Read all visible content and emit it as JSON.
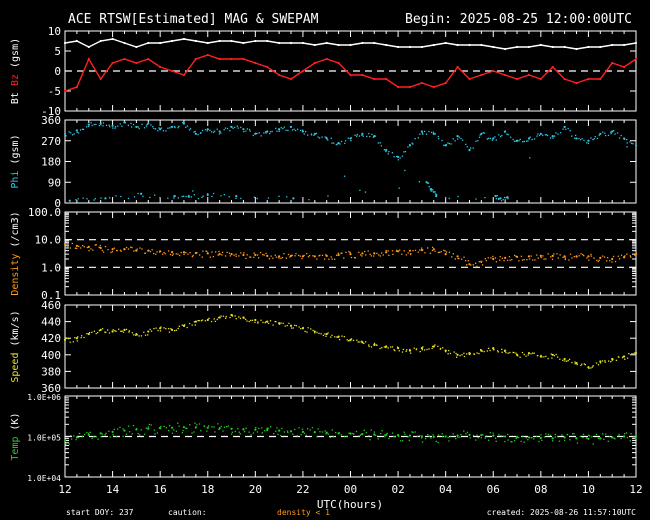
{
  "title": "ACE RTSW[Estimated] MAG & SWEPAM",
  "begin": "Begin: 2025-08-25 12:00:00UTC",
  "xlabel": "UTC(hours)",
  "footer": {
    "start": "start DOY: 237",
    "caution": "caution:",
    "caution_note": "density < 1",
    "created": "created: 2025-08-26 11:57:10UTC"
  },
  "colors": {
    "bt": "#ffffff",
    "bz": "#ff2020",
    "phi": "#30c8e8",
    "density": "#ff9a1a",
    "speed": "#e8e020",
    "temp": "#20d020",
    "axes": "#ffffff",
    "caution": "#ff9a1a"
  },
  "chart_data": [
    {
      "type": "line",
      "panel": "mag",
      "ylabel_parts": [
        "Bt",
        "Bz",
        "(gsm)"
      ],
      "ylim": [
        -10,
        10
      ],
      "yticks": [
        "10",
        "5",
        "0",
        "-5",
        "-10"
      ],
      "ref_lines": [
        0
      ],
      "series": [
        {
          "name": "Bt",
          "x": [
            0,
            0.5,
            1,
            1.5,
            2,
            2.5,
            3,
            3.5,
            4,
            4.5,
            5,
            5.5,
            6,
            6.5,
            7,
            7.5,
            8,
            8.5,
            9,
            9.5,
            10,
            10.5,
            11,
            11.5,
            12,
            12.5,
            13,
            13.5,
            14,
            14.5,
            15,
            15.5,
            16,
            16.5,
            17,
            17.5,
            18,
            18.5,
            19,
            19.5,
            20,
            20.5,
            21,
            21.5,
            22,
            22.5,
            23,
            23.5,
            24
          ],
          "y": [
            7,
            7.5,
            6,
            7.5,
            8,
            7,
            6,
            7,
            7,
            7.5,
            8,
            7.5,
            7,
            7.5,
            7.5,
            7,
            7.5,
            7.5,
            7,
            7,
            7,
            6.5,
            7,
            6.5,
            6.5,
            7,
            7,
            6.5,
            6,
            6,
            6,
            6.5,
            7,
            6.5,
            6.5,
            6.5,
            6,
            5.5,
            6,
            6,
            6.5,
            6,
            6,
            5.5,
            6,
            6,
            6.5,
            6.5,
            7
          ]
        },
        {
          "name": "Bz",
          "x": [
            0,
            0.5,
            1,
            1.5,
            2,
            2.5,
            3,
            3.5,
            4,
            4.5,
            5,
            5.5,
            6,
            6.5,
            7,
            7.5,
            8,
            8.5,
            9,
            9.5,
            10,
            10.5,
            11,
            11.5,
            12,
            12.5,
            13,
            13.5,
            14,
            14.5,
            15,
            15.5,
            16,
            16.5,
            17,
            17.5,
            18,
            18.5,
            19,
            19.5,
            20,
            20.5,
            21,
            21.5,
            22,
            22.5,
            23,
            23.5,
            24
          ],
          "y": [
            -5,
            -4,
            3,
            -2,
            2,
            3,
            2,
            3,
            1,
            0,
            -1,
            3,
            4,
            3,
            3,
            3,
            2,
            1,
            -1,
            -2,
            0,
            2,
            3,
            2,
            -1,
            -1,
            -2,
            -2,
            -4,
            -4,
            -3,
            -4,
            -3,
            1,
            -2,
            -1,
            0,
            -1,
            -2,
            -1,
            -2,
            1,
            -2,
            -3,
            -2,
            -2,
            2,
            1,
            3
          ]
        }
      ]
    },
    {
      "type": "scatter",
      "panel": "phi",
      "ylabel_parts": [
        "Phi",
        "(gsm)"
      ],
      "ylim": [
        0,
        360
      ],
      "yticks": [
        "360",
        "270",
        "180",
        "90",
        "0"
      ],
      "series": [
        {
          "name": "Phi",
          "x": [
            0,
            0.5,
            1,
            1.5,
            2,
            2.5,
            3,
            3.5,
            4,
            4.5,
            5,
            5.5,
            6,
            6.5,
            7,
            7.5,
            8,
            8.5,
            9,
            9.5,
            10,
            10.5,
            11,
            11.5,
            12,
            12.5,
            13,
            13.5,
            14,
            14.5,
            15,
            15.5,
            16,
            16.5,
            17,
            17.5,
            18,
            18.5,
            19,
            19.5,
            20,
            20.5,
            21,
            21.5,
            22,
            22.5,
            23,
            23.5,
            24,
            0.2,
            1.7,
            3.2,
            4.6,
            5.2,
            6.0,
            7.2,
            9.6,
            15.2,
            15.4,
            15.6,
            18.1,
            18.3,
            18.6
          ],
          "y": [
            300,
            315,
            340,
            345,
            335,
            350,
            330,
            345,
            320,
            330,
            345,
            300,
            320,
            310,
            330,
            320,
            300,
            310,
            320,
            330,
            310,
            300,
            280,
            260,
            280,
            300,
            290,
            230,
            200,
            250,
            310,
            300,
            250,
            290,
            230,
            300,
            280,
            310,
            270,
            280,
            300,
            290,
            330,
            280,
            270,
            300,
            310,
            280,
            250,
            10,
            20,
            40,
            30,
            30,
            35,
            30,
            20,
            90,
            60,
            30,
            30,
            20,
            25
          ]
        }
      ]
    },
    {
      "type": "scatter",
      "panel": "density",
      "ylabel_parts": [
        "Density",
        "(/cm3)"
      ],
      "yscale": "log",
      "ylim": [
        0.1,
        100
      ],
      "yticks": [
        "100.0",
        "10.0",
        "1.0",
        "0.1"
      ],
      "ref_lines": [
        1,
        10
      ],
      "series": [
        {
          "name": "Density",
          "x": [
            0,
            0.5,
            1,
            1.5,
            2,
            2.5,
            3,
            3.5,
            4,
            4.5,
            5,
            5.5,
            6,
            6.5,
            7,
            7.5,
            8,
            8.5,
            9,
            9.5,
            10,
            10.5,
            11,
            11.5,
            12,
            12.5,
            13,
            13.5,
            14,
            14.5,
            15,
            15.5,
            16,
            16.5,
            17,
            17.5,
            18,
            18.5,
            19,
            19.5,
            20,
            20.5,
            21,
            21.5,
            22,
            22.5,
            23,
            23.5,
            24
          ],
          "y": [
            7,
            6,
            5.5,
            5,
            4.5,
            4.5,
            4,
            4,
            3.8,
            3.6,
            3.5,
            3.3,
            3.2,
            3,
            3,
            2.8,
            2.8,
            2.6,
            2.5,
            2.6,
            2.5,
            2.5,
            2.6,
            2.8,
            3,
            3.2,
            3.2,
            3.5,
            3.8,
            4,
            4.2,
            4.5,
            3,
            2.5,
            1.3,
            1.6,
            2,
            2.2,
            2.4,
            2.5,
            2.6,
            2.6,
            2.5,
            2.5,
            2.5,
            2.2,
            2,
            2.3,
            3
          ]
        }
      ]
    },
    {
      "type": "scatter",
      "panel": "speed",
      "ylabel_parts": [
        "Speed",
        "(km/s)"
      ],
      "ylim": [
        360,
        460
      ],
      "yticks": [
        "460",
        "440",
        "420",
        "400",
        "380",
        "360"
      ],
      "series": [
        {
          "name": "Speed",
          "x": [
            0,
            0.5,
            1,
            1.5,
            2,
            2.5,
            3,
            3.5,
            4,
            4.5,
            5,
            5.5,
            6,
            6.5,
            7,
            7.5,
            8,
            8.5,
            9,
            9.5,
            10,
            10.5,
            11,
            11.5,
            12,
            12.5,
            13,
            13.5,
            14,
            14.5,
            15,
            15.5,
            16,
            16.5,
            17,
            17.5,
            18,
            18.5,
            19,
            19.5,
            20,
            20.5,
            21,
            21.5,
            22,
            22.5,
            23,
            23.5,
            24
          ],
          "y": [
            418,
            420,
            425,
            430,
            428,
            430,
            425,
            428,
            432,
            430,
            435,
            440,
            442,
            445,
            448,
            445,
            442,
            440,
            438,
            435,
            432,
            428,
            425,
            422,
            418,
            415,
            412,
            410,
            408,
            405,
            408,
            410,
            405,
            400,
            402,
            405,
            408,
            405,
            400,
            402,
            398,
            400,
            395,
            390,
            385,
            392,
            395,
            398,
            402
          ]
        }
      ]
    },
    {
      "type": "scatter",
      "panel": "temp",
      "ylabel_parts": [
        "Temp",
        "(K)"
      ],
      "yscale": "log",
      "ylim": [
        10000,
        1000000
      ],
      "yticks": [
        "1.0E+06",
        "1.0E+05",
        "1.0E+04"
      ],
      "ref_lines": [
        100000
      ],
      "series": [
        {
          "name": "Temp",
          "x": [
            0,
            0.5,
            1,
            1.5,
            2,
            2.5,
            3,
            3.5,
            4,
            4.5,
            5,
            5.5,
            6,
            6.5,
            7,
            7.5,
            8,
            8.5,
            9,
            9.5,
            10,
            10.5,
            11,
            11.5,
            12,
            12.5,
            13,
            13.5,
            14,
            14.5,
            15,
            15.5,
            16,
            16.5,
            17,
            17.5,
            18,
            18.5,
            19,
            19.5,
            20,
            20.5,
            21,
            21.5,
            22,
            22.5,
            23,
            23.5,
            24
          ],
          "y": [
            80000,
            95000,
            110000,
            120000,
            130000,
            140000,
            150000,
            155000,
            160000,
            165000,
            170000,
            168000,
            165000,
            160000,
            155000,
            150000,
            148000,
            145000,
            140000,
            135000,
            130000,
            128000,
            125000,
            120000,
            118000,
            115000,
            112000,
            110000,
            108000,
            105000,
            100000,
            98000,
            100000,
            105000,
            110000,
            108000,
            105000,
            100000,
            98000,
            95000,
            92000,
            90000,
            95000,
            90000,
            88000,
            90000,
            95000,
            100000,
            105000
          ]
        }
      ]
    }
  ],
  "xaxis": {
    "ticks": [
      "12",
      "14",
      "16",
      "18",
      "20",
      "22",
      "00",
      "02",
      "04",
      "06",
      "08",
      "10",
      "12"
    ],
    "xlim": [
      0,
      24
    ],
    "minor_per_hour": 2
  }
}
